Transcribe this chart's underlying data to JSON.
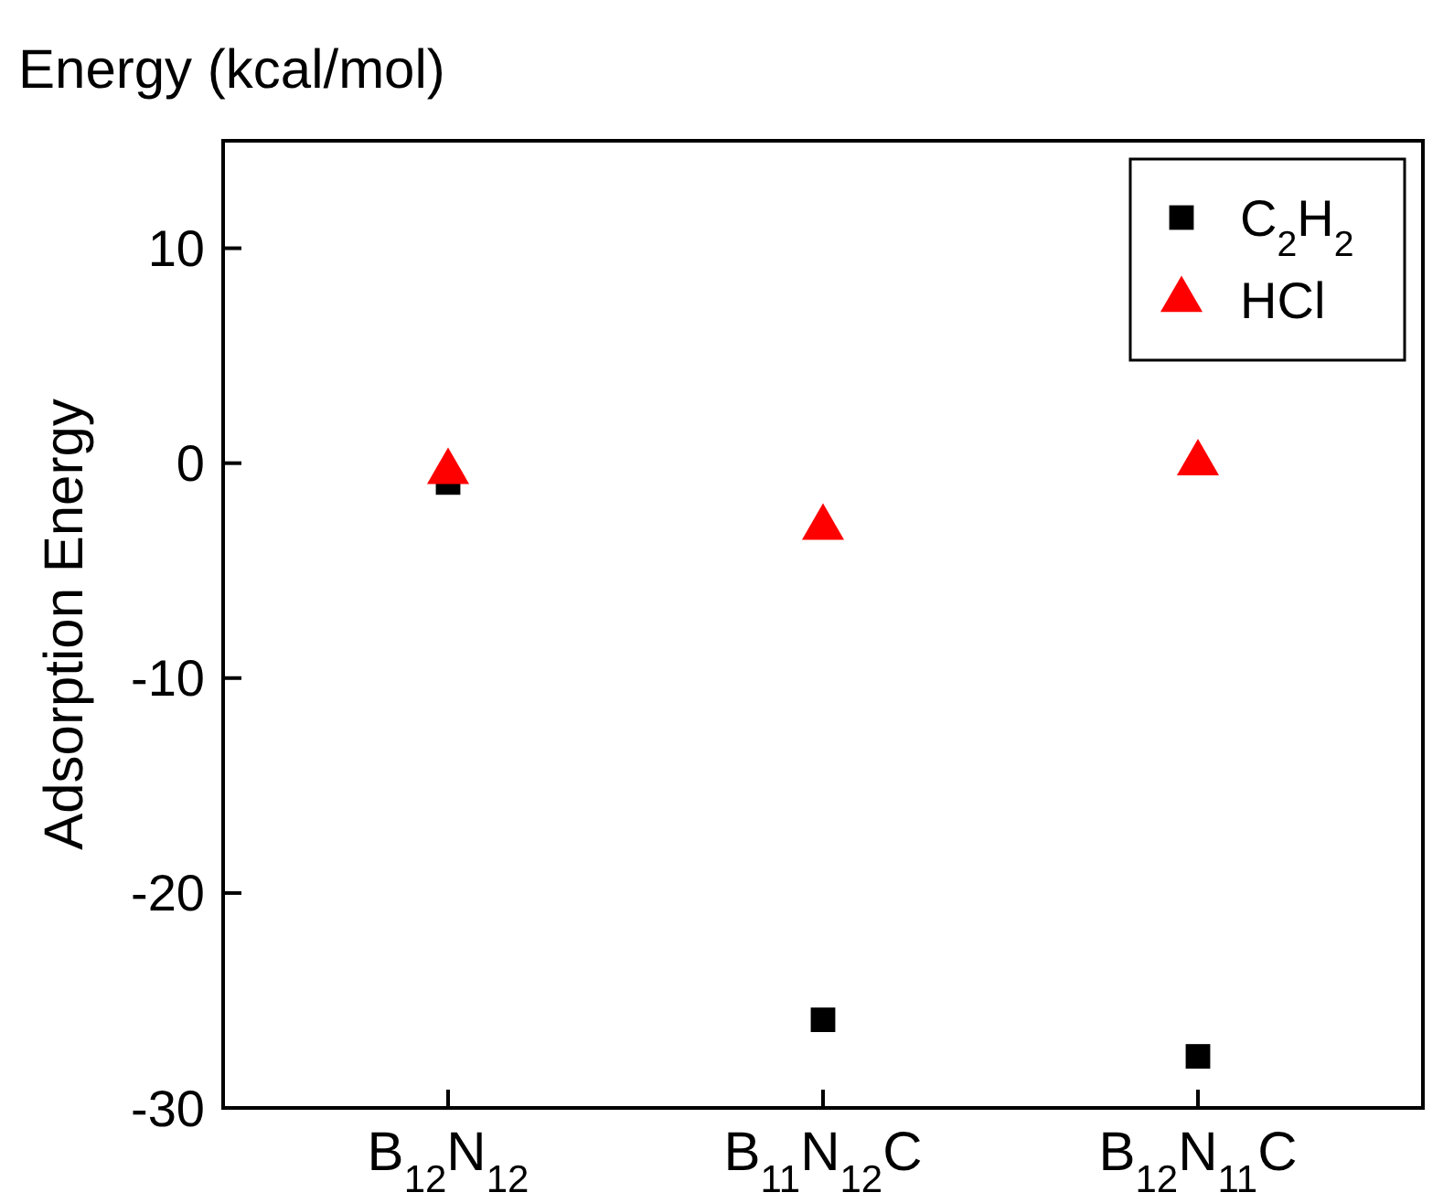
{
  "chart_data": {
    "type": "scatter",
    "title": "Energy (kcal/mol)",
    "ylabel": "Adsorption Energy",
    "categories": [
      "B$_{12}$N$_{12}$",
      "B$_{11}$N$_{12}$C",
      "B$_{12}$N$_{11}$C"
    ],
    "series": [
      {
        "name": "C$_{2}$H$_{2}$",
        "color": "#000000",
        "marker": "square",
        "values": [
          -0.9,
          -25.9,
          -27.6
        ]
      },
      {
        "name": "HCl",
        "color": "#ff0000",
        "marker": "triangle",
        "values": [
          -0.4,
          -3.0,
          0
        ]
      }
    ],
    "ylim": [
      -30,
      15
    ],
    "yticks": [
      -30,
      -20,
      -10,
      0,
      10
    ],
    "legend": "top right",
    "grid": false
  }
}
